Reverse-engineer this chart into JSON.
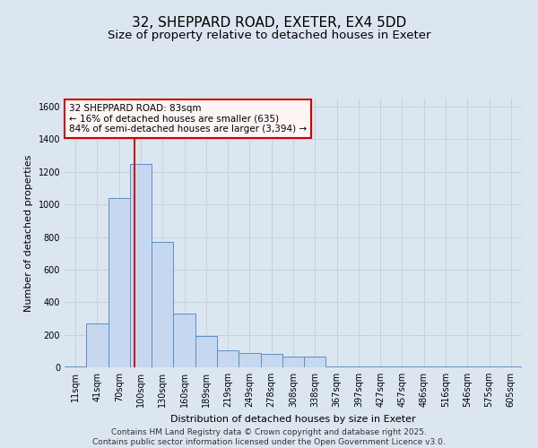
{
  "title1": "32, SHEPPARD ROAD, EXETER, EX4 5DD",
  "title2": "Size of property relative to detached houses in Exeter",
  "xlabel": "Distribution of detached houses by size in Exeter",
  "ylabel": "Number of detached properties",
  "bins": [
    "11sqm",
    "41sqm",
    "70sqm",
    "100sqm",
    "130sqm",
    "160sqm",
    "189sqm",
    "219sqm",
    "249sqm",
    "278sqm",
    "308sqm",
    "338sqm",
    "367sqm",
    "397sqm",
    "427sqm",
    "457sqm",
    "486sqm",
    "516sqm",
    "546sqm",
    "575sqm",
    "605sqm"
  ],
  "values": [
    3,
    270,
    1040,
    1250,
    770,
    330,
    195,
    105,
    90,
    80,
    65,
    65,
    5,
    3,
    3,
    3,
    3,
    3,
    3,
    3,
    3
  ],
  "bar_color": "#c5d8f0",
  "bar_edge_color": "#5b8fc4",
  "bar_edge_width": 0.7,
  "vline_x_index": 2.72,
  "vline_color": "#cc0000",
  "annotation_text": "32 SHEPPARD ROAD: 83sqm\n← 16% of detached houses are smaller (635)\n84% of semi-detached houses are larger (3,394) →",
  "annotation_box_facecolor": "#fff5f5",
  "annotation_box_edgecolor": "#cc0000",
  "ylim": [
    0,
    1650
  ],
  "yticks": [
    0,
    200,
    400,
    600,
    800,
    1000,
    1200,
    1400,
    1600
  ],
  "grid_color": "#c8d0dc",
  "bg_color": "#dce6f0",
  "footer_line1": "Contains HM Land Registry data © Crown copyright and database right 2025.",
  "footer_line2": "Contains public sector information licensed under the Open Government Licence v3.0.",
  "title_fontsize": 11,
  "subtitle_fontsize": 9.5,
  "axis_label_fontsize": 8,
  "tick_fontsize": 7,
  "footer_fontsize": 6.5
}
